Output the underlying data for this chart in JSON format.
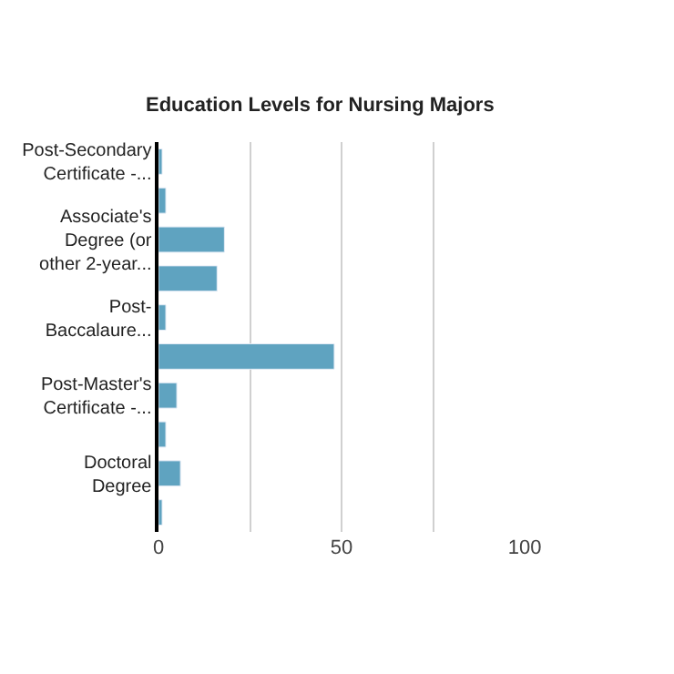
{
  "chart_data": {
    "type": "bar",
    "orientation": "horizontal",
    "title": "Education Levels for Nursing Majors",
    "categories": [
      "Post-Secondary Certificate -...",
      null,
      "Associate's Degree (or other 2-year...",
      null,
      "Post-Baccalaure...",
      null,
      "Post-Master's Certificate -...",
      null,
      "Doctoral Degree",
      null
    ],
    "values": [
      1,
      2,
      18,
      16,
      2,
      48,
      5,
      2,
      6,
      1
    ],
    "color": "#5fa3c0",
    "xlim": [
      0,
      100
    ],
    "xticks": [
      0,
      {
        "value": 25,
        "label": null
      },
      50,
      {
        "value": 75,
        "label": null
      },
      100
    ],
    "grid": "x"
  }
}
